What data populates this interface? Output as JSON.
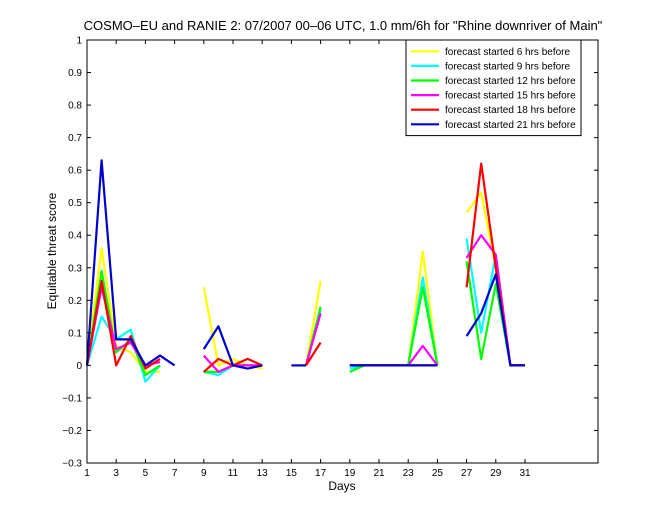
{
  "chart_data": {
    "type": "line",
    "title": "COSMO–EU and RANIE 2: 07/2007 00–06 UTC, 1.0 mm/6h for \"Rhine downriver of Main\"",
    "xlabel": "Days",
    "ylabel": "Equitable threat score",
    "xlim": [
      1,
      36
    ],
    "ylim": [
      -0.3,
      1
    ],
    "xticks": [
      1,
      3,
      5,
      7,
      9,
      11,
      13,
      15,
      17,
      19,
      21,
      23,
      25,
      27,
      29,
      31
    ],
    "yticks": [
      -0.3,
      -0.2,
      -0.1,
      0,
      0.1,
      0.2,
      0.3,
      0.4,
      0.5,
      0.6,
      0.7,
      0.8,
      0.9,
      1
    ],
    "ytick_labels": [
      "−0.3",
      "−0.2",
      "−0.1",
      "0",
      "0.1",
      "0.2",
      "0.3",
      "0.4",
      "0.5",
      "0.6",
      "0.7",
      "0.8",
      "0.9",
      "1"
    ],
    "legend_position": "top-right",
    "grid": false,
    "x": [
      1,
      2,
      3,
      4,
      5,
      6,
      7,
      8,
      9,
      10,
      11,
      12,
      13,
      14,
      15,
      16,
      17,
      18,
      19,
      20,
      21,
      22,
      23,
      24,
      25,
      26,
      27,
      28,
      29,
      30,
      31
    ],
    "series": [
      {
        "name": "forecast started 6 hrs before",
        "color": "#ffff00",
        "values": [
          0.01,
          0.36,
          0.06,
          0.04,
          -0.02,
          -0.02,
          null,
          null,
          0.24,
          0.0,
          0.02,
          0.0,
          -0.01,
          null,
          null,
          0.0,
          0.26,
          null,
          -0.01,
          0.0,
          0.0,
          0.0,
          0.0,
          0.35,
          0.0,
          null,
          0.47,
          0.53,
          0.3,
          0.0,
          0.0
        ]
      },
      {
        "name": "forecast started 9 hrs before",
        "color": "#00ffff",
        "values": [
          0.0,
          0.15,
          0.08,
          0.11,
          -0.05,
          0.0,
          null,
          null,
          -0.02,
          -0.03,
          0.0,
          0.0,
          0.0,
          null,
          null,
          0.0,
          0.17,
          null,
          -0.01,
          0.0,
          0.0,
          0.0,
          0.0,
          0.27,
          0.0,
          null,
          0.39,
          0.1,
          0.34,
          0.0,
          0.0
        ]
      },
      {
        "name": "forecast started 12 hrs before",
        "color": "#00ff00",
        "values": [
          0.0,
          0.29,
          0.04,
          0.08,
          -0.03,
          0.0,
          null,
          null,
          -0.02,
          -0.02,
          0.0,
          0.0,
          0.0,
          null,
          null,
          0.0,
          0.18,
          null,
          -0.02,
          0.0,
          0.0,
          0.0,
          0.0,
          0.24,
          0.0,
          null,
          0.32,
          0.02,
          0.25,
          0.0,
          0.0
        ]
      },
      {
        "name": "forecast started 15 hrs before",
        "color": "#ff00ff",
        "values": [
          0.0,
          0.24,
          0.05,
          0.07,
          0.0,
          0.01,
          null,
          null,
          0.03,
          -0.02,
          0.0,
          0.0,
          0.0,
          null,
          null,
          0.0,
          0.16,
          null,
          0.0,
          0.0,
          0.0,
          0.0,
          0.0,
          0.06,
          0.0,
          null,
          0.33,
          0.4,
          0.34,
          0.0,
          0.0
        ]
      },
      {
        "name": "forecast started 18 hrs before",
        "color": "#ff0000",
        "values": [
          0.0,
          0.26,
          0.0,
          0.09,
          -0.01,
          0.02,
          null,
          null,
          -0.02,
          0.02,
          0.0,
          0.02,
          0.0,
          null,
          null,
          0.0,
          0.07,
          null,
          0.0,
          0.0,
          0.0,
          0.0,
          0.0,
          0.0,
          0.0,
          null,
          0.24,
          0.62,
          0.3,
          0.0,
          0.0
        ]
      },
      {
        "name": "forecast started 21 hrs before",
        "color": "#0000d0",
        "values": [
          0.0,
          0.63,
          0.08,
          0.08,
          0.0,
          0.03,
          0.0,
          null,
          0.05,
          0.12,
          0.0,
          -0.01,
          0.0,
          null,
          0.0,
          0.0,
          null,
          null,
          0.0,
          0.0,
          0.0,
          0.0,
          0.0,
          0.0,
          0.0,
          null,
          0.09,
          0.16,
          0.28,
          0.0,
          0.0
        ]
      }
    ]
  }
}
